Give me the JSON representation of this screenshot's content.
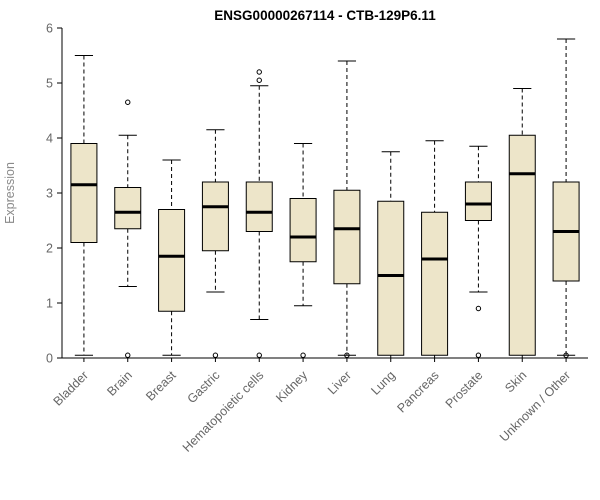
{
  "chart_data": {
    "type": "boxplot",
    "title": "ENSG00000267114 - CTB-129P6.11",
    "ylabel": "Expression",
    "xlabel": "",
    "ylim": [
      0,
      6
    ],
    "yticks": [
      0,
      1,
      2,
      3,
      4,
      5,
      6
    ],
    "grid": false,
    "legend": "none",
    "categories": [
      "Bladder",
      "Brain",
      "Breast",
      "Gastric",
      "Hematopoietic cells",
      "Kidney",
      "Liver",
      "Lung",
      "Pancreas",
      "Prostate",
      "Skin",
      "Unknown / Other"
    ],
    "boxes": [
      {
        "label": "Bladder",
        "whisker_low": 0.05,
        "q1": 2.1,
        "median": 3.15,
        "q3": 3.9,
        "whisker_high": 5.5,
        "outliers": []
      },
      {
        "label": "Brain",
        "whisker_low": 1.3,
        "q1": 2.35,
        "median": 2.65,
        "q3": 3.1,
        "whisker_high": 4.05,
        "outliers": [
          4.65,
          0.05
        ]
      },
      {
        "label": "Breast",
        "whisker_low": 0.05,
        "q1": 0.85,
        "median": 1.85,
        "q3": 2.7,
        "whisker_high": 3.6,
        "outliers": []
      },
      {
        "label": "Gastric",
        "whisker_low": 1.2,
        "q1": 1.95,
        "median": 2.75,
        "q3": 3.2,
        "whisker_high": 4.15,
        "outliers": [
          0.05
        ]
      },
      {
        "label": "Hematopoietic cells",
        "whisker_low": 0.7,
        "q1": 2.3,
        "median": 2.65,
        "q3": 3.2,
        "whisker_high": 4.95,
        "outliers": [
          5.2,
          5.05,
          0.05
        ]
      },
      {
        "label": "Kidney",
        "whisker_low": 0.95,
        "q1": 1.75,
        "median": 2.2,
        "q3": 2.9,
        "whisker_high": 3.9,
        "outliers": [
          0.05
        ]
      },
      {
        "label": "Liver",
        "whisker_low": 0.05,
        "q1": 1.35,
        "median": 2.35,
        "q3": 3.05,
        "whisker_high": 5.4,
        "outliers": [
          0.05
        ]
      },
      {
        "label": "Lung",
        "whisker_low": 0.0,
        "q1": 0.05,
        "median": 1.5,
        "q3": 2.85,
        "whisker_high": 3.75,
        "outliers": []
      },
      {
        "label": "Pancreas",
        "whisker_low": 0.0,
        "q1": 0.05,
        "median": 1.8,
        "q3": 2.65,
        "whisker_high": 3.95,
        "outliers": []
      },
      {
        "label": "Prostate",
        "whisker_low": 1.2,
        "q1": 2.5,
        "median": 2.8,
        "q3": 3.2,
        "whisker_high": 3.85,
        "outliers": [
          0.9,
          0.05
        ]
      },
      {
        "label": "Skin",
        "whisker_low": 0.0,
        "q1": 0.05,
        "median": 3.35,
        "q3": 4.05,
        "whisker_high": 4.9,
        "outliers": []
      },
      {
        "label": "Unknown / Other",
        "whisker_low": 0.05,
        "q1": 1.4,
        "median": 2.3,
        "q3": 3.2,
        "whisker_high": 5.8,
        "outliers": [
          0.05
        ]
      }
    ]
  },
  "colors": {
    "background": "#FFFFFF",
    "box_fill": "#EDE5C9",
    "box_stroke": "#000000",
    "axis": "#000000",
    "tick_label": "#666666",
    "axis_label": "#8A8A8A",
    "title": "#000000"
  }
}
